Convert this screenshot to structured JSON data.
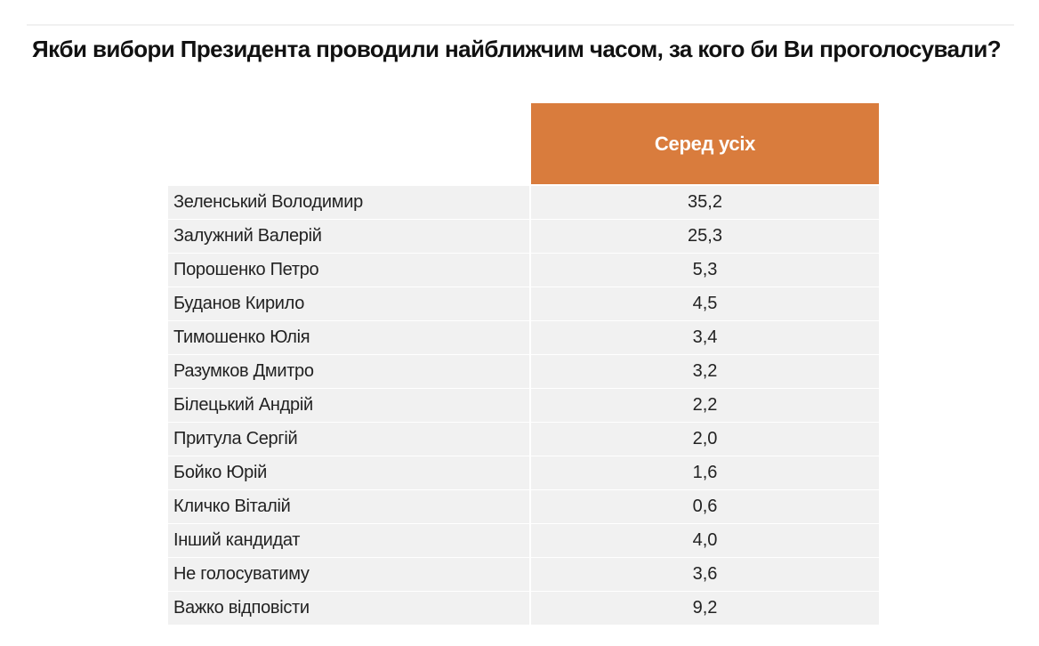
{
  "title": "Якби вибори Президента проводили найближчим часом, за кого би Ви проголосували?",
  "accent_color": "#d97c3d",
  "table": {
    "column_header": "Серед усіх",
    "rows": [
      {
        "name": "Зеленський Володимир",
        "value": "35,2"
      },
      {
        "name": "Залужний Валерій",
        "value": "25,3"
      },
      {
        "name": "Порошенко Петро",
        "value": "5,3"
      },
      {
        "name": "Буданов Кирило",
        "value": "4,5"
      },
      {
        "name": "Тимошенко Юлія",
        "value": "3,4"
      },
      {
        "name": "Разумков Дмитро",
        "value": "3,2"
      },
      {
        "name": "Білецький Андрій",
        "value": "2,2"
      },
      {
        "name": "Притула Сергій",
        "value": "2,0"
      },
      {
        "name": "Бойко Юрій",
        "value": "1,6"
      },
      {
        "name": "Кличко Віталій",
        "value": "0,6"
      },
      {
        "name": "Інший кандидат",
        "value": "4,0"
      },
      {
        "name": "Не голосуватиму",
        "value": "3,6"
      },
      {
        "name": "Важко відповісти",
        "value": "9,2"
      }
    ]
  }
}
